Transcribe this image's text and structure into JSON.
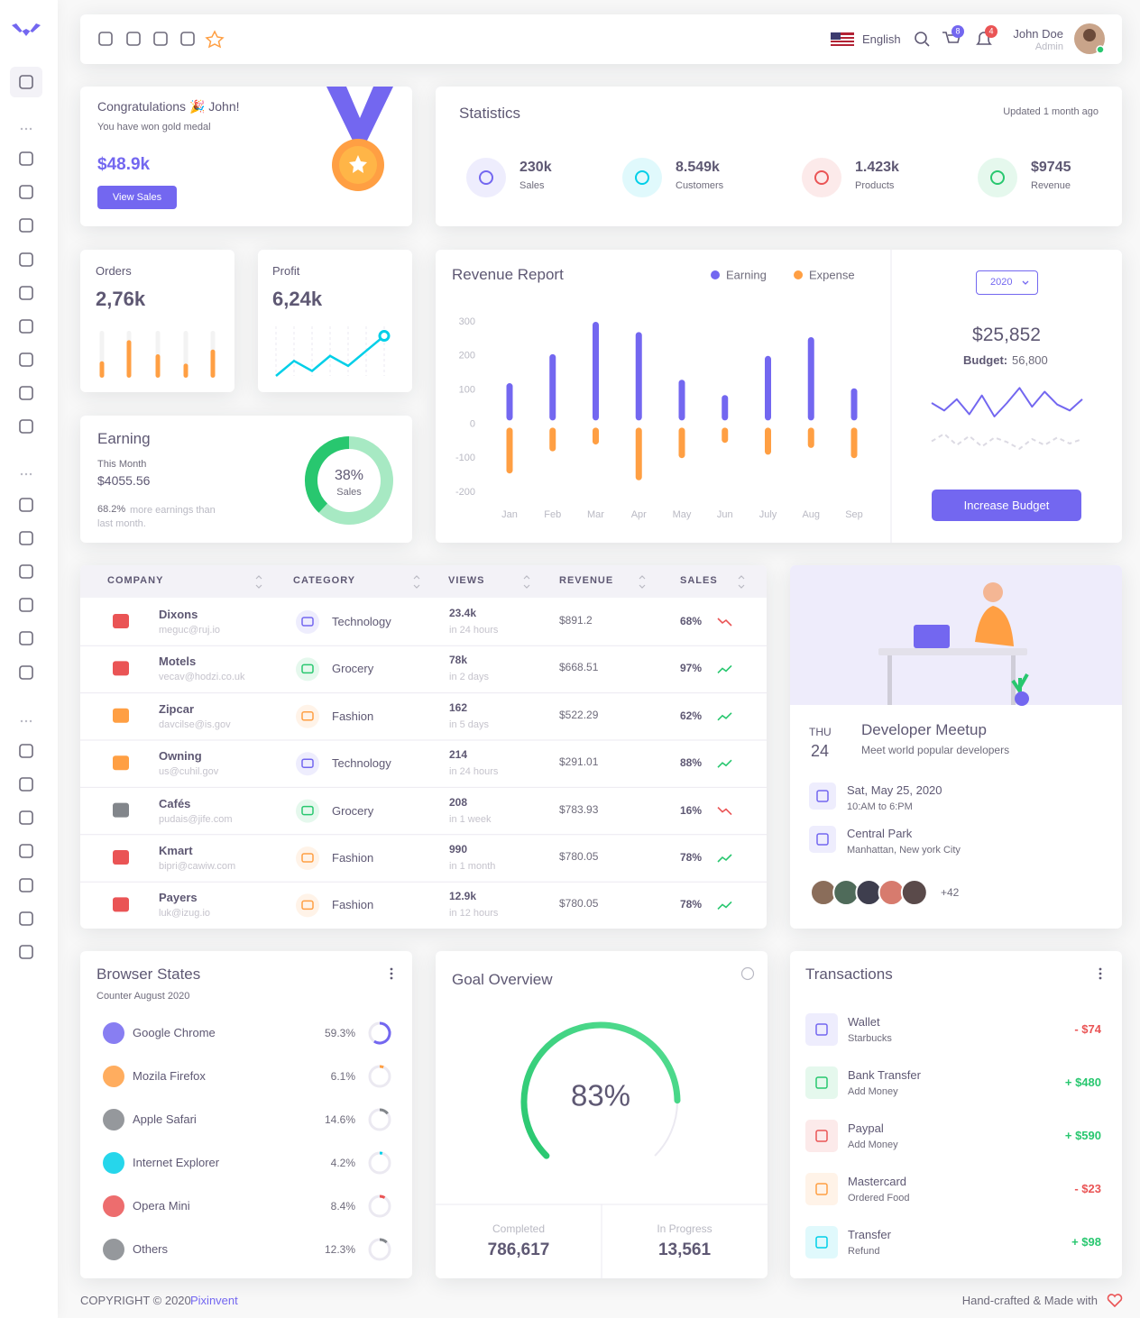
{
  "navbar": {
    "language": "English",
    "cart_count": "8",
    "notification_count": "4",
    "user_name": "John Doe",
    "user_role": "Admin"
  },
  "congrats": {
    "title": "Congratulations 🎉 John!",
    "subtitle": "You have won gold medal",
    "amount": "$48.9k",
    "button": "View Sales"
  },
  "statistics": {
    "title": "Statistics",
    "updated": "Updated 1 month ago",
    "items": [
      {
        "value": "230k",
        "label": "Sales",
        "color": "#7367f0"
      },
      {
        "value": "8.549k",
        "label": "Customers",
        "color": "#00cfe8"
      },
      {
        "value": "1.423k",
        "label": "Products",
        "color": "#ea5455"
      },
      {
        "value": "$9745",
        "label": "Revenue",
        "color": "#28c76f"
      }
    ]
  },
  "orders": {
    "title": "Orders",
    "value": "2,76k",
    "bars": [
      35,
      80,
      50,
      30,
      60
    ],
    "ylim": [
      0,
      100
    ],
    "color": "#ff9f43"
  },
  "profit": {
    "title": "Profit",
    "value": "6,24k",
    "line": [
      0,
      15,
      5,
      20,
      10,
      25,
      40
    ],
    "ylim": [
      0,
      45
    ],
    "color": "#00cfe8"
  },
  "earning": {
    "title": "Earning",
    "period": "This Month",
    "amount": "$4055.56",
    "note_value": "68.2%",
    "note": "more earnings than last month.",
    "donut": {
      "value": 38,
      "value_label": "38%",
      "label": "Sales"
    }
  },
  "revenue_report": {
    "type": "bar",
    "title": "Revenue Report",
    "categories": [
      "Jan",
      "Feb",
      "Mar",
      "Apr",
      "May",
      "Jun",
      "July",
      "Aug",
      "Sep"
    ],
    "series": [
      {
        "name": "Earning",
        "color": "#7367f0",
        "values": [
          120,
          205,
          300,
          270,
          130,
          85,
          200,
          255,
          105
        ]
      },
      {
        "name": "Expense",
        "color": "#ff9f43",
        "values": [
          -145,
          -80,
          -60,
          -165,
          -100,
          -55,
          -90,
          -70,
          -100
        ]
      }
    ],
    "ylim": [
      -200,
      300
    ],
    "yticks": [
      -200,
      -100,
      0,
      100,
      200,
      300
    ]
  },
  "budget": {
    "year": "2020",
    "amount": "$25,852",
    "budget_label": "Budget:",
    "budget_value": "56,800",
    "button": "Increase Budget",
    "ylim": [
      0,
      60
    ],
    "line": {
      "color": "#7367f0",
      "values": [
        30,
        20,
        35,
        15,
        40,
        12,
        30,
        50,
        25,
        45,
        28,
        20,
        35
      ]
    },
    "dashed": {
      "color": "#dcdae3",
      "values": [
        15,
        25,
        10,
        22,
        8,
        20,
        14,
        5,
        18,
        10,
        20,
        12,
        18
      ]
    }
  },
  "table": {
    "headers": [
      "COMPANY",
      "CATEGORY",
      "VIEWS",
      "REVENUE",
      "SALES"
    ],
    "rows": [
      {
        "company": "Dixons",
        "email": "meguc@ruj.io",
        "category": "Technology",
        "views": "23.4k",
        "period": "in 24 hours",
        "revenue": "$891.2",
        "sales": "68%",
        "trend": "down"
      },
      {
        "company": "Motels",
        "email": "vecav@hodzi.co.uk",
        "category": "Grocery",
        "views": "78k",
        "period": "in 2 days",
        "revenue": "$668.51",
        "sales": "97%",
        "trend": "up"
      },
      {
        "company": "Zipcar",
        "email": "davcilse@is.gov",
        "category": "Fashion",
        "views": "162",
        "period": "in 5 days",
        "revenue": "$522.29",
        "sales": "62%",
        "trend": "up"
      },
      {
        "company": "Owning",
        "email": "us@cuhil.gov",
        "category": "Technology",
        "views": "214",
        "period": "in 24 hours",
        "revenue": "$291.01",
        "sales": "88%",
        "trend": "up"
      },
      {
        "company": "Cafés",
        "email": "pudais@jife.com",
        "category": "Grocery",
        "views": "208",
        "period": "in 1 week",
        "revenue": "$783.93",
        "sales": "16%",
        "trend": "down"
      },
      {
        "company": "Kmart",
        "email": "bipri@cawiw.com",
        "category": "Fashion",
        "views": "990",
        "period": "in 1 month",
        "revenue": "$780.05",
        "sales": "78%",
        "trend": "up"
      },
      {
        "company": "Payers",
        "email": "luk@izug.io",
        "category": "Fashion",
        "views": "12.9k",
        "period": "in 12 hours",
        "revenue": "$780.05",
        "sales": "78%",
        "trend": "up"
      }
    ]
  },
  "meetup": {
    "day": "THU",
    "date": "24",
    "title": "Developer Meetup",
    "subtitle": "Meet world popular developers",
    "when": "Sat, May 25, 2020",
    "time": "10:AM to 6:PM",
    "where": "Central Park",
    "address": "Manhattan, New york City",
    "more": "+42"
  },
  "browsers": {
    "title": "Browser States",
    "subtitle": "Counter August 2020",
    "items": [
      {
        "name": "Google Chrome",
        "value": 59.3,
        "value_label": "59.3%",
        "color": "#7367f0"
      },
      {
        "name": "Mozila Firefox",
        "value": 6.1,
        "value_label": "6.1%",
        "color": "#ff9f43"
      },
      {
        "name": "Apple Safari",
        "value": 14.6,
        "value_label": "14.6%",
        "color": "#82868b"
      },
      {
        "name": "Internet Explorer",
        "value": 4.2,
        "value_label": "4.2%",
        "color": "#00cfe8"
      },
      {
        "name": "Opera Mini",
        "value": 8.4,
        "value_label": "8.4%",
        "color": "#ea5455"
      },
      {
        "name": "Others",
        "value": 12.3,
        "value_label": "12.3%",
        "color": "#82868b"
      }
    ]
  },
  "goal": {
    "title": "Goal Overview",
    "value": 83,
    "value_label": "83%",
    "completed_label": "Completed",
    "completed": "786,617",
    "progress_label": "In Progress",
    "progress": "13,561"
  },
  "transactions": {
    "title": "Transactions",
    "items": [
      {
        "name": "Wallet",
        "detail": "Starbucks",
        "amount": "- $74",
        "color": "#7367f0",
        "amount_color": "#ea5455"
      },
      {
        "name": "Bank Transfer",
        "detail": "Add Money",
        "amount": "+ $480",
        "color": "#28c76f",
        "amount_color": "#28c76f"
      },
      {
        "name": "Paypal",
        "detail": "Add Money",
        "amount": "+ $590",
        "color": "#ea5455",
        "amount_color": "#28c76f"
      },
      {
        "name": "Mastercard",
        "detail": "Ordered Food",
        "amount": "- $23",
        "color": "#ff9f43",
        "amount_color": "#ea5455"
      },
      {
        "name": "Transfer",
        "detail": "Refund",
        "amount": "+ $98",
        "color": "#00cfe8",
        "amount_color": "#28c76f"
      }
    ]
  },
  "footer": {
    "copyright": "COPYRIGHT © 2020",
    "brand": "Pixinvent",
    "credit": "Hand-crafted & Made with"
  }
}
